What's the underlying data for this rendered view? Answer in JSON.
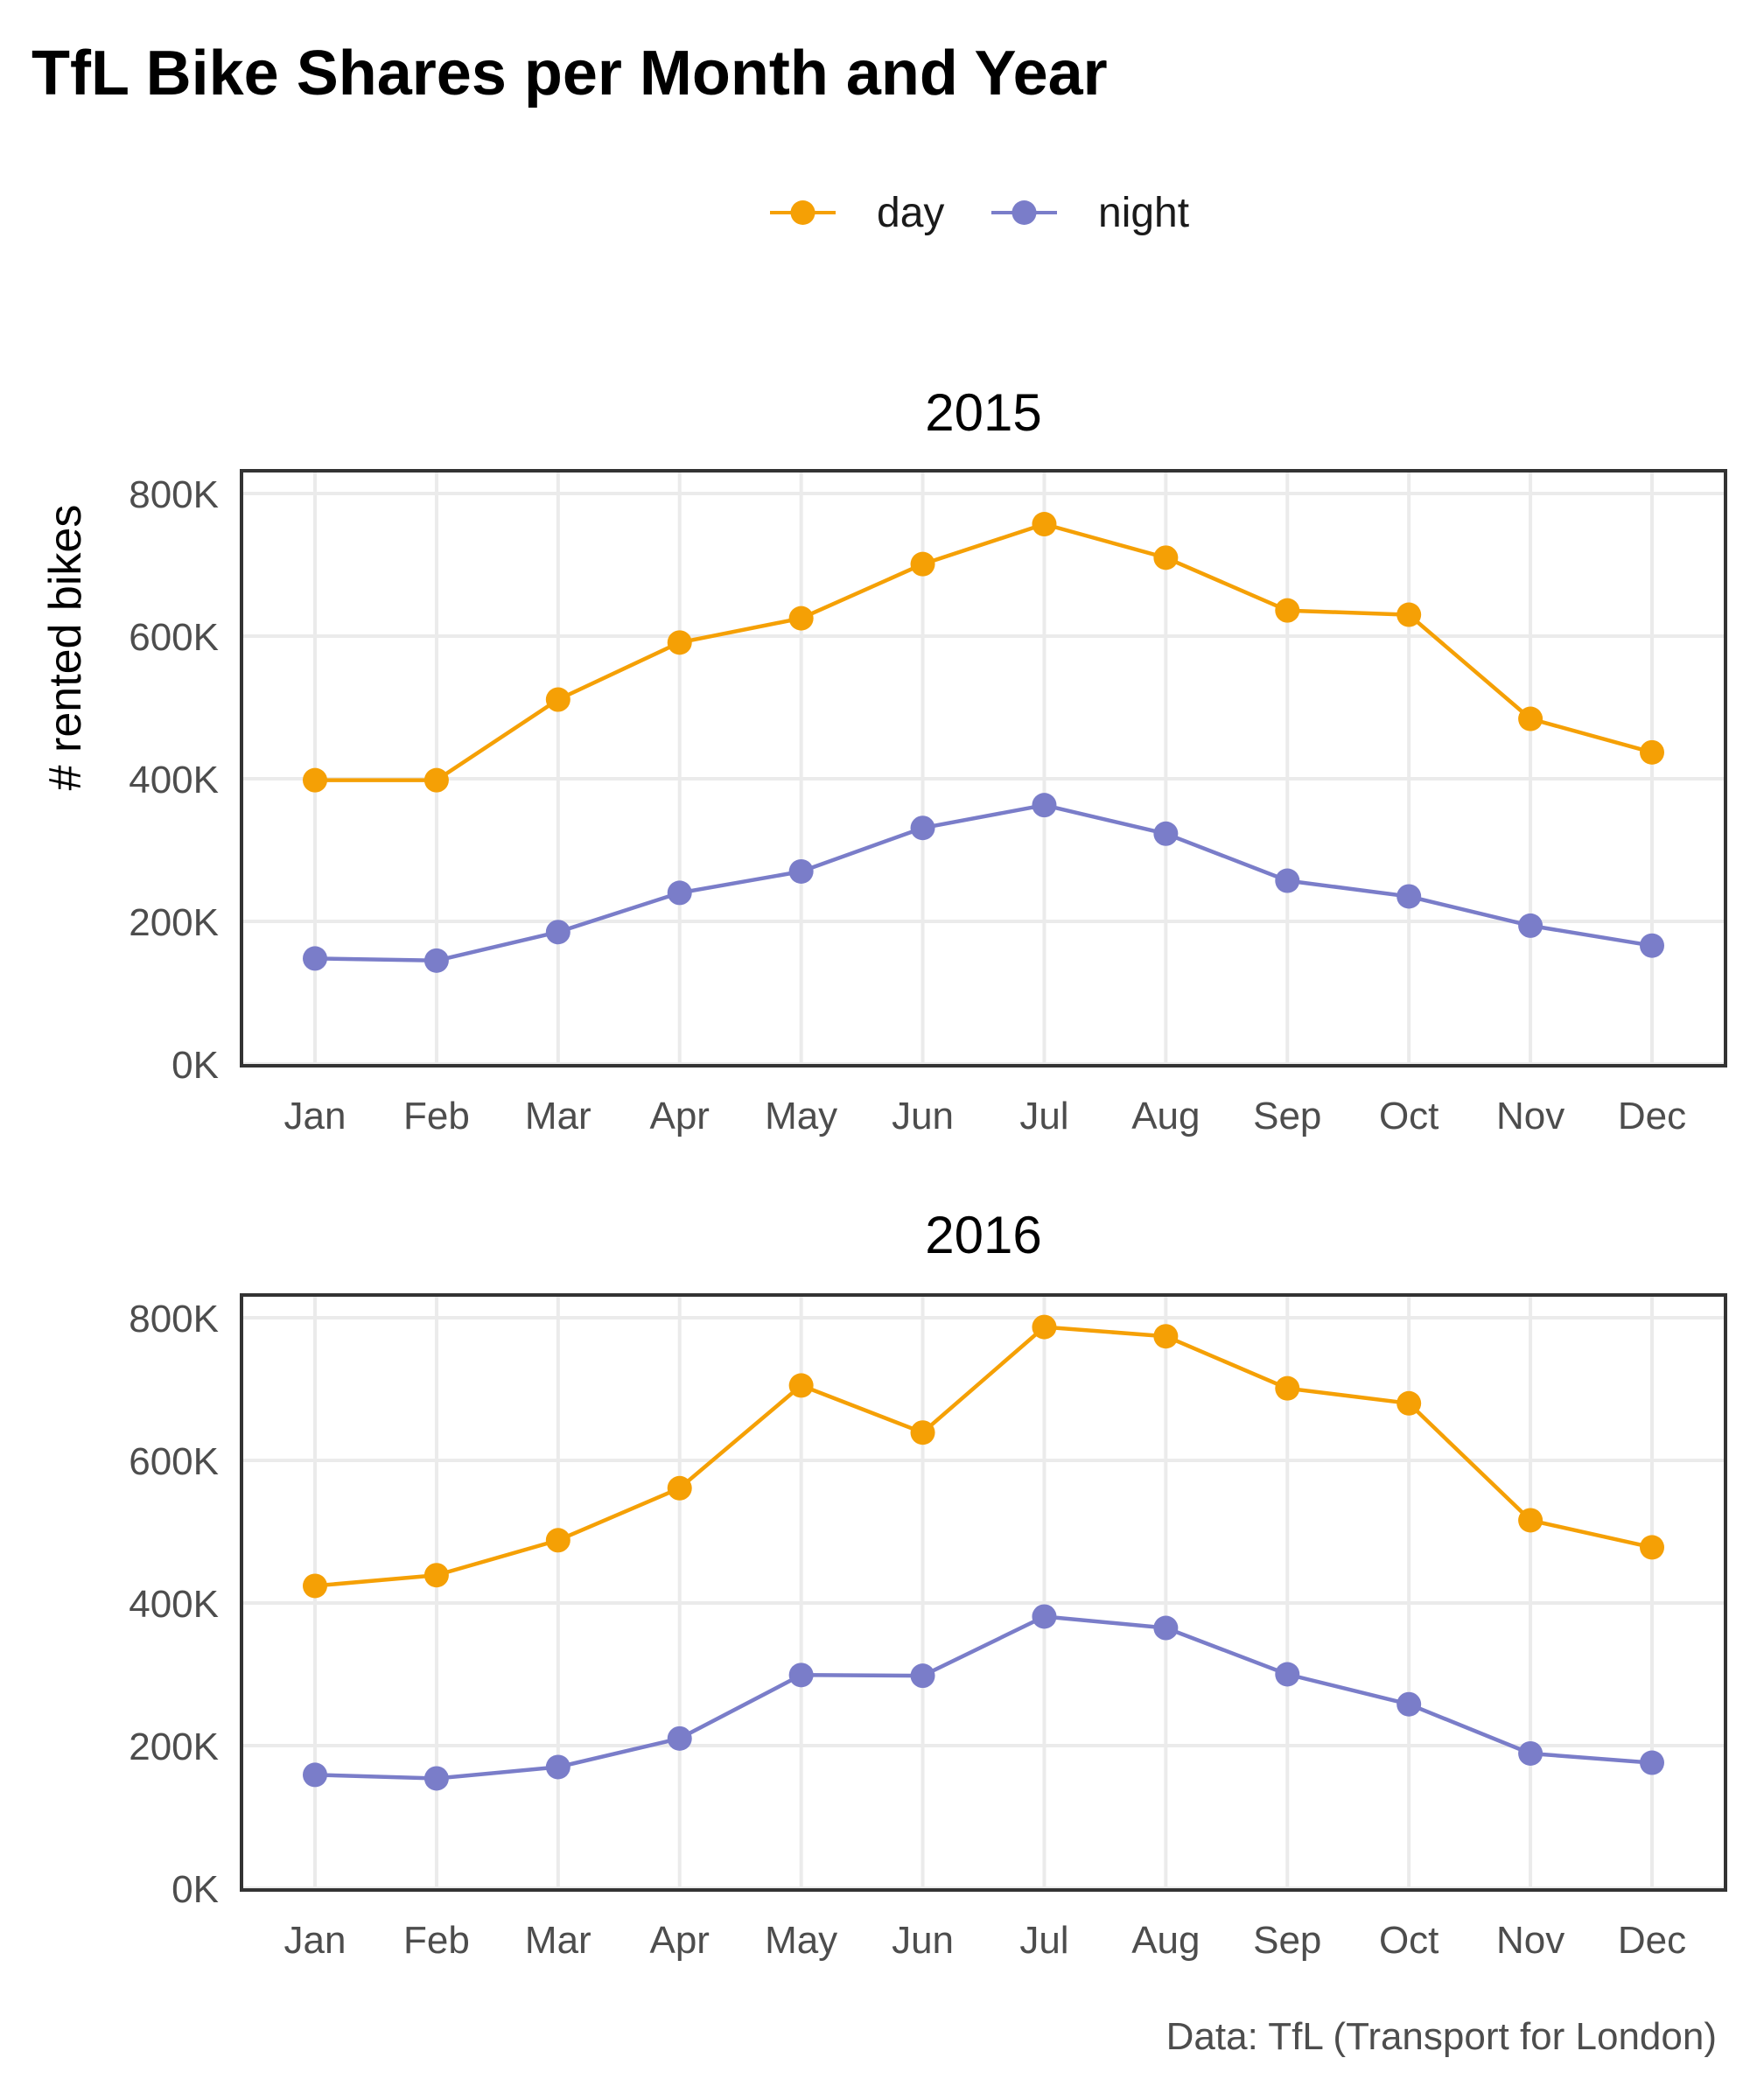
{
  "chart_data": {
    "type": "line",
    "title": "TfL Bike Shares per Month and Year",
    "ylabel": "# rented bikes",
    "xlabel": "",
    "caption": "Data: TfL (Transport for London)",
    "categories": [
      "Jan",
      "Feb",
      "Mar",
      "Apr",
      "May",
      "Jun",
      "Jul",
      "Aug",
      "Sep",
      "Oct",
      "Nov",
      "Dec"
    ],
    "ylim": [
      0,
      800000
    ],
    "yticks": [
      0,
      200000,
      400000,
      600000,
      800000
    ],
    "ytick_labels": [
      "0K",
      "200K",
      "400K",
      "600K",
      "800K"
    ],
    "grid": true,
    "legend_position": "top",
    "legend": [
      {
        "name": "day",
        "color": "#F5A005"
      },
      {
        "name": "night",
        "color": "#7A7DC9"
      }
    ],
    "facets": [
      {
        "label": "2015",
        "series": [
          {
            "name": "day",
            "values": [
              398000,
              398000,
              511000,
              591000,
              625000,
              701000,
              757000,
              710000,
              636000,
              630000,
              484000,
              437000
            ]
          },
          {
            "name": "night",
            "values": [
              148000,
              145000,
              185000,
              240000,
              270000,
              331000,
              363000,
              323000,
              257000,
              235000,
              194000,
              166000
            ]
          }
        ]
      },
      {
        "label": "2016",
        "series": [
          {
            "name": "day",
            "values": [
              424000,
              439000,
              488000,
              561000,
              705000,
              639000,
              787000,
              774000,
              701000,
              680000,
              516000,
              478000
            ]
          },
          {
            "name": "night",
            "values": [
              159000,
              154000,
              170000,
              210000,
              299000,
              298000,
              381000,
              365000,
              300000,
              258000,
              189000,
              176000
            ]
          }
        ]
      }
    ]
  }
}
